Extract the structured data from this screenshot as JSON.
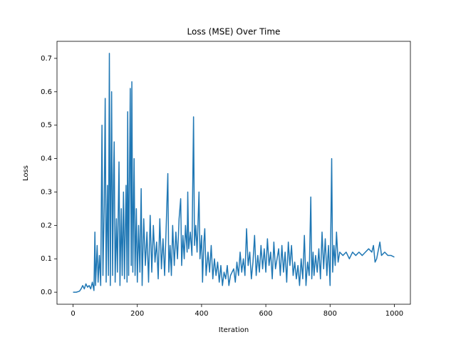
{
  "chart_data": {
    "type": "line",
    "title": "Loss (MSE) Over Time",
    "x_label": "Iteration",
    "y_label": "Loss",
    "x": [
      0,
      10,
      20,
      25,
      30,
      35,
      40,
      45,
      50,
      55,
      60,
      65,
      68,
      70,
      75,
      78,
      82,
      86,
      90,
      93,
      97,
      100,
      103,
      107,
      110,
      113,
      116,
      120,
      123,
      126,
      128,
      131,
      135,
      138,
      143,
      146,
      150,
      153,
      157,
      160,
      165,
      168,
      170,
      173,
      178,
      181,
      183,
      186,
      190,
      193,
      197,
      200,
      204,
      208,
      212,
      215,
      220,
      225,
      230,
      235,
      240,
      245,
      250,
      255,
      260,
      265,
      270,
      275,
      280,
      285,
      290,
      295,
      298,
      302,
      306,
      310,
      315,
      320,
      325,
      330,
      335,
      338,
      342,
      346,
      350,
      355,
      357,
      360,
      365,
      370,
      375,
      378,
      382,
      386,
      392,
      395,
      400,
      403,
      407,
      410,
      414,
      420,
      425,
      430,
      435,
      440,
      445,
      450,
      455,
      460,
      465,
      470,
      475,
      480,
      485,
      490,
      500,
      505,
      510,
      515,
      520,
      525,
      530,
      535,
      540,
      545,
      550,
      555,
      560,
      565,
      570,
      575,
      580,
      585,
      590,
      595,
      600,
      605,
      610,
      615,
      620,
      625,
      630,
      640,
      645,
      650,
      655,
      660,
      665,
      670,
      675,
      680,
      685,
      690,
      695,
      700,
      705,
      710,
      715,
      720,
      725,
      730,
      735,
      740,
      743,
      747,
      750,
      755,
      760,
      765,
      770,
      775,
      780,
      785,
      790,
      795,
      800,
      805,
      808,
      812,
      816,
      820,
      825,
      830,
      840,
      850,
      860,
      870,
      880,
      890,
      900,
      910,
      920,
      930,
      935,
      940,
      945,
      955,
      960,
      970,
      980,
      990,
      1000
    ],
    "series": [
      {
        "name": "loss",
        "color": "#1f77b4",
        "values": [
          0.0,
          0.0,
          0.003,
          0.01,
          0.02,
          0.01,
          0.025,
          0.015,
          0.02,
          0.01,
          0.03,
          0.005,
          0.18,
          0.02,
          0.14,
          0.03,
          0.11,
          0.02,
          0.5,
          0.05,
          0.26,
          0.58,
          0.03,
          0.32,
          0.05,
          0.715,
          0.02,
          0.6,
          0.05,
          0.35,
          0.45,
          0.03,
          0.22,
          0.06,
          0.39,
          0.02,
          0.25,
          0.05,
          0.3,
          0.04,
          0.32,
          0.03,
          0.54,
          0.05,
          0.61,
          0.08,
          0.63,
          0.06,
          0.4,
          0.05,
          0.25,
          0.03,
          0.2,
          0.06,
          0.31,
          0.02,
          0.22,
          0.08,
          0.18,
          0.03,
          0.23,
          0.06,
          0.2,
          0.09,
          0.15,
          0.04,
          0.22,
          0.07,
          0.16,
          0.05,
          0.2,
          0.355,
          0.06,
          0.14,
          0.05,
          0.2,
          0.08,
          0.18,
          0.1,
          0.22,
          0.28,
          0.08,
          0.17,
          0.1,
          0.2,
          0.12,
          0.3,
          0.13,
          0.18,
          0.11,
          0.525,
          0.14,
          0.2,
          0.12,
          0.3,
          0.1,
          0.17,
          0.03,
          0.15,
          0.19,
          0.05,
          0.12,
          0.06,
          0.14,
          0.04,
          0.1,
          0.05,
          0.09,
          0.03,
          0.08,
          0.02,
          0.06,
          0.04,
          0.08,
          0.02,
          0.05,
          0.07,
          0.03,
          0.09,
          0.05,
          0.12,
          0.06,
          0.1,
          0.05,
          0.19,
          0.08,
          0.12,
          0.04,
          0.09,
          0.17,
          0.05,
          0.11,
          0.06,
          0.14,
          0.07,
          0.13,
          0.06,
          0.16,
          0.08,
          0.12,
          0.04,
          0.15,
          0.07,
          0.13,
          0.05,
          0.14,
          0.06,
          0.12,
          0.03,
          0.15,
          0.08,
          0.14,
          0.05,
          0.09,
          0.04,
          0.08,
          0.02,
          0.1,
          0.04,
          0.17,
          0.02,
          0.09,
          0.05,
          0.285,
          0.04,
          0.12,
          0.05,
          0.11,
          0.06,
          0.13,
          0.04,
          0.18,
          0.07,
          0.16,
          0.05,
          0.14,
          0.02,
          0.4,
          0.06,
          0.14,
          0.08,
          0.18,
          0.09,
          0.12,
          0.11,
          0.12,
          0.1,
          0.12,
          0.11,
          0.12,
          0.11,
          0.12,
          0.13,
          0.12,
          0.14,
          0.09,
          0.1,
          0.15,
          0.11,
          0.12,
          0.11,
          0.11,
          0.105
        ]
      }
    ],
    "xlim": [
      -50,
      1050
    ],
    "ylim": [
      -0.036,
      0.751
    ],
    "xticks": [
      0,
      200,
      400,
      600,
      800,
      1000
    ],
    "yticks": [
      {
        "value": 0,
        "label": "0.0"
      },
      {
        "value": 0.1,
        "label": "0.1"
      },
      {
        "value": 0.2,
        "label": "0.2"
      },
      {
        "value": 0.3,
        "label": "0.3"
      },
      {
        "value": 0.4,
        "label": "0.4"
      },
      {
        "value": 0.5,
        "label": "0.5"
      },
      {
        "value": 0.6,
        "label": "0.6"
      },
      {
        "value": 0.7,
        "label": "0.7"
      }
    ],
    "grid": false
  }
}
